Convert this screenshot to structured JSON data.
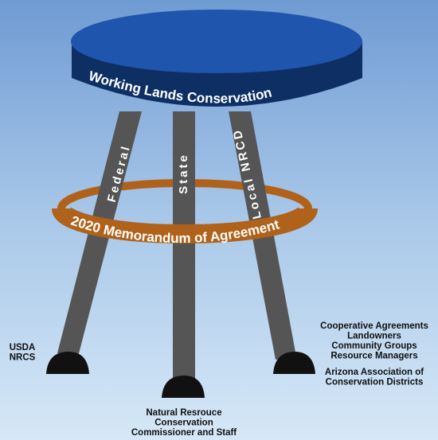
{
  "seat": {
    "label": "Working Lands Conservation"
  },
  "legs": [
    {
      "label": "Federal"
    },
    {
      "label": "State"
    },
    {
      "label": "Local NRCD"
    }
  ],
  "ring": {
    "label": "2020 Memorandum of Agreement"
  },
  "feet": [
    {
      "groups": [
        [
          "USDA",
          "NRCS"
        ]
      ]
    },
    {
      "groups": [
        [
          "Natural Resrouce",
          "Conservation",
          "Commissioner and Staff"
        ]
      ]
    },
    {
      "groups": [
        [
          "Cooperative Agreements",
          "Landowners",
          "Community Groups",
          "Resource Managers"
        ],
        [
          "Arizona Association of",
          "Conservation Districts"
        ]
      ]
    }
  ]
}
